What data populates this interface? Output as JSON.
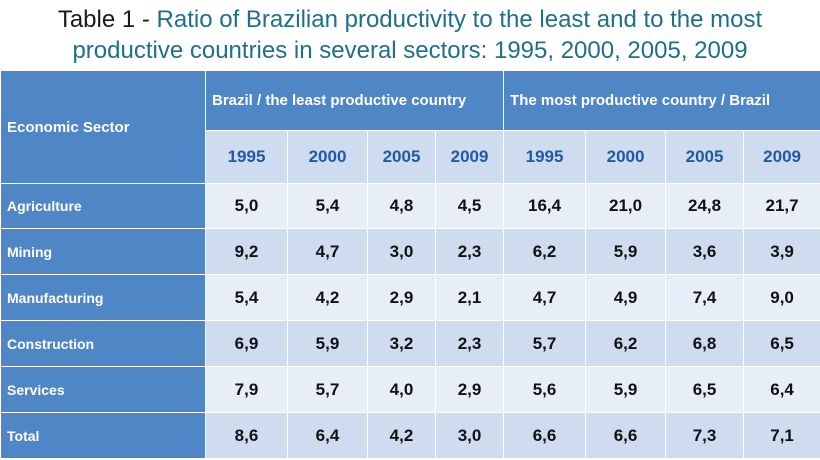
{
  "title": {
    "prefix": "Table 1 - ",
    "line1": "Ratio of Brazilian productivity to the least and to the most",
    "line2": "productive countries in several sectors: 1995, 2000, 2005, 2009"
  },
  "colors": {
    "header_blue": "#4f86c6",
    "light_row": "#e8eef7",
    "dark_row": "#cfdcef",
    "year_text": "#1f5aa8",
    "title_text": "#1f6f8b"
  },
  "chart_data": {
    "type": "table",
    "row_header_label": "Economic Sector",
    "groups": [
      {
        "label": "Brazil  / the least productive country",
        "years": [
          "1995",
          "2000",
          "2005",
          "2009"
        ]
      },
      {
        "label": "The most productive country / Brazil",
        "years": [
          "1995",
          "2000",
          "2005",
          "2009"
        ]
      }
    ],
    "rows": [
      {
        "sector": "Agriculture",
        "values": [
          "5,0",
          "5,4",
          "4,8",
          "4,5",
          "16,4",
          "21,0",
          "24,8",
          "21,7"
        ]
      },
      {
        "sector": "Mining",
        "values": [
          "9,2",
          "4,7",
          "3,0",
          "2,3",
          "6,2",
          "5,9",
          "3,6",
          "3,9"
        ]
      },
      {
        "sector": "Manufacturing",
        "values": [
          "5,4",
          "4,2",
          "2,9",
          "2,1",
          "4,7",
          "4,9",
          "7,4",
          "9,0"
        ]
      },
      {
        "sector": "Construction",
        "values": [
          "6,9",
          "5,9",
          "3,2",
          "2,3",
          "5,7",
          "6,2",
          "6,8",
          "6,5"
        ]
      },
      {
        "sector": "Services",
        "values": [
          "7,9",
          "5,7",
          "4,0",
          "2,9",
          "5,6",
          "5,9",
          "6,5",
          "6,4"
        ]
      },
      {
        "sector": "Total",
        "values": [
          "8,6",
          "6,4",
          "4,2",
          "3,0",
          "6,6",
          "6,6",
          "7,3",
          "7,1"
        ]
      }
    ]
  }
}
